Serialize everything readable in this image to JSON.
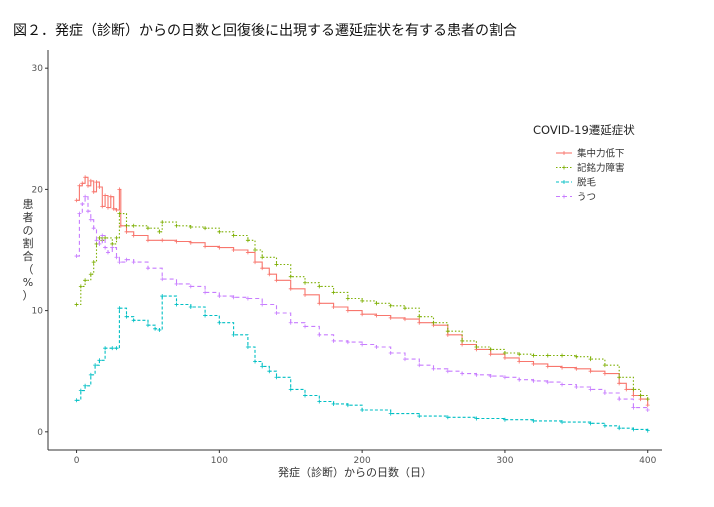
{
  "chart_data": {
    "type": "line",
    "title": "図２．発症（診断）からの日数と回復後に出現する遷延症状を有する患者の割合",
    "xlabel": "発症（診断）からの日数（日）",
    "ylabel": "患者の割合（%）",
    "xlim": [
      -20,
      410
    ],
    "ylim": [
      -1.5,
      31.5
    ],
    "xticks": [
      0,
      100,
      200,
      300,
      400
    ],
    "yticks": [
      0,
      10,
      20,
      30
    ],
    "grid": false,
    "legend_title": "COVID-19遷延症状",
    "legend_position": "right",
    "series": [
      {
        "name": "集中力低下",
        "color": "#F8766D",
        "dash": "",
        "x": [
          0,
          2,
          4,
          6,
          8,
          10,
          12,
          14,
          16,
          18,
          20,
          22,
          24,
          26,
          28,
          30,
          31,
          35,
          40,
          50,
          60,
          70,
          80,
          90,
          100,
          110,
          120,
          125,
          130,
          135,
          140,
          150,
          160,
          170,
          180,
          190,
          200,
          210,
          220,
          230,
          240,
          250,
          260,
          270,
          280,
          290,
          300,
          310,
          320,
          330,
          340,
          350,
          360,
          370,
          380,
          385,
          390,
          395,
          400
        ],
        "y": [
          19.1,
          20.3,
          20.5,
          21.0,
          20.3,
          20.7,
          19.8,
          20.6,
          20.2,
          18.6,
          19.5,
          18.5,
          19.4,
          18.4,
          18.3,
          20.0,
          17.0,
          16.5,
          16.2,
          15.8,
          15.8,
          15.7,
          15.6,
          15.3,
          15.2,
          15.0,
          14.8,
          14.0,
          13.5,
          13.0,
          12.5,
          11.8,
          11.3,
          10.6,
          10.3,
          10.0,
          9.7,
          9.6,
          9.4,
          9.3,
          9.0,
          8.8,
          8.0,
          7.2,
          6.8,
          6.4,
          6.1,
          5.8,
          5.6,
          5.4,
          5.3,
          5.2,
          5.0,
          4.8,
          4.0,
          3.5,
          3.0,
          2.7,
          2.2
        ]
      },
      {
        "name": "記銘力障害",
        "color": "#7CAE00",
        "dash": "1.5 2",
        "x": [
          0,
          3,
          6,
          10,
          12,
          14,
          16,
          18,
          20,
          25,
          28,
          30,
          35,
          40,
          50,
          58,
          60,
          70,
          80,
          90,
          100,
          110,
          120,
          125,
          130,
          140,
          150,
          160,
          170,
          180,
          190,
          200,
          210,
          220,
          230,
          240,
          250,
          260,
          270,
          280,
          290,
          300,
          310,
          320,
          330,
          340,
          350,
          360,
          370,
          380,
          390,
          395,
          400
        ],
        "y": [
          10.5,
          12.0,
          12.5,
          13.0,
          14.0,
          15.5,
          16.0,
          15.8,
          16.0,
          15.5,
          16.0,
          18.0,
          17.0,
          17.0,
          16.8,
          16.5,
          17.3,
          17.0,
          16.9,
          16.8,
          16.5,
          16.2,
          15.8,
          15.0,
          14.4,
          13.8,
          12.8,
          12.3,
          12.0,
          11.5,
          11.0,
          10.8,
          10.6,
          10.4,
          10.2,
          9.5,
          9.0,
          8.3,
          7.5,
          7.0,
          6.8,
          6.5,
          6.4,
          6.3,
          6.3,
          6.3,
          6.2,
          6.0,
          5.5,
          4.5,
          3.5,
          3.0,
          2.7
        ]
      },
      {
        "name": "脱毛",
        "color": "#00BFC4",
        "dash": "3 2",
        "x": [
          0,
          3,
          6,
          10,
          13,
          16,
          20,
          25,
          28,
          30,
          35,
          40,
          50,
          55,
          58,
          60,
          70,
          80,
          90,
          100,
          110,
          120,
          125,
          130,
          135,
          140,
          150,
          160,
          170,
          180,
          190,
          200,
          220,
          240,
          260,
          280,
          300,
          320,
          340,
          360,
          370,
          380,
          390,
          400
        ],
        "y": [
          2.6,
          3.4,
          3.8,
          4.7,
          5.5,
          5.9,
          6.9,
          6.9,
          6.9,
          10.2,
          9.5,
          9.2,
          8.8,
          8.5,
          8.4,
          11.2,
          10.5,
          10.3,
          9.6,
          9.0,
          8.0,
          7.0,
          5.8,
          5.4,
          5.0,
          4.5,
          3.5,
          3.0,
          2.5,
          2.3,
          2.2,
          1.8,
          1.5,
          1.3,
          1.2,
          1.1,
          1.0,
          0.9,
          0.8,
          0.7,
          0.5,
          0.3,
          0.2,
          0.1
        ]
      },
      {
        "name": "うつ",
        "color": "#C77CFF",
        "dash": "4 3",
        "x": [
          0,
          2,
          4,
          6,
          8,
          10,
          12,
          14,
          16,
          18,
          20,
          22,
          25,
          28,
          30,
          35,
          40,
          50,
          60,
          70,
          80,
          90,
          100,
          110,
          120,
          130,
          140,
          150,
          160,
          170,
          180,
          190,
          200,
          210,
          220,
          230,
          240,
          250,
          260,
          270,
          280,
          290,
          300,
          310,
          320,
          330,
          340,
          350,
          360,
          370,
          380,
          390,
          400
        ],
        "y": [
          14.5,
          18.0,
          18.8,
          19.4,
          18.2,
          17.5,
          16.8,
          15.8,
          15.5,
          16.2,
          15.2,
          14.8,
          15.2,
          14.4,
          14.0,
          14.2,
          14.0,
          13.5,
          12.6,
          12.2,
          12.0,
          11.5,
          11.2,
          11.1,
          11.0,
          10.5,
          9.8,
          9.0,
          8.7,
          8.0,
          7.5,
          7.4,
          7.2,
          7.0,
          6.5,
          6.0,
          5.5,
          5.2,
          5.0,
          4.8,
          4.7,
          4.6,
          4.5,
          4.3,
          4.2,
          4.1,
          3.9,
          3.7,
          3.5,
          3.2,
          2.7,
          2.0,
          1.8
        ]
      }
    ]
  }
}
